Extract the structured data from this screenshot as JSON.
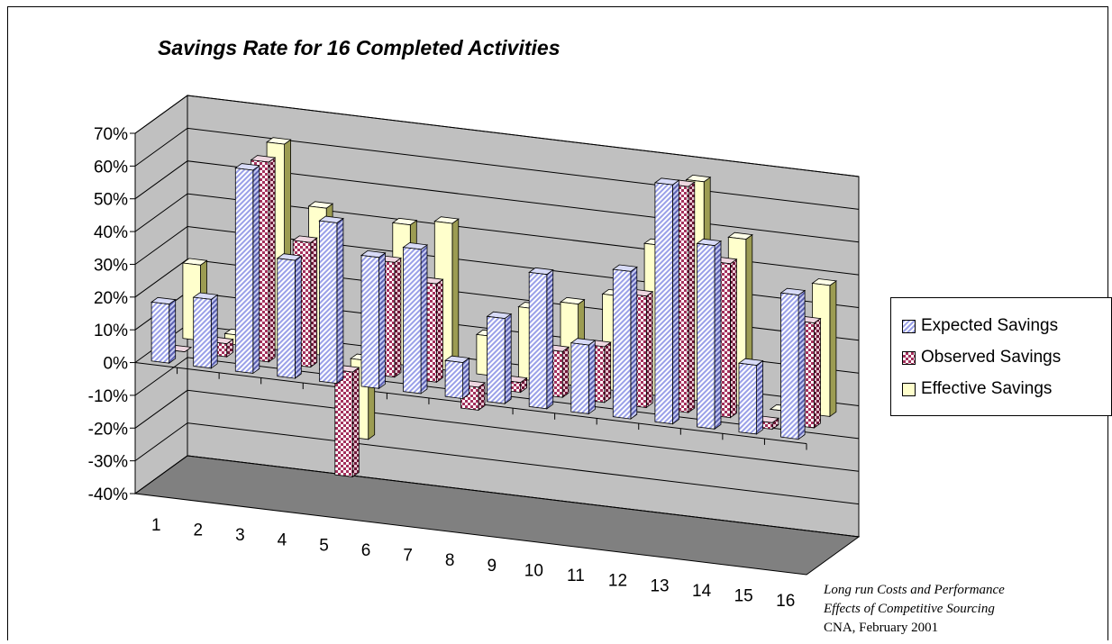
{
  "chart_data": {
    "type": "bar",
    "title": "Savings Rate for 16 Completed Activities",
    "categories": [
      "1",
      "2",
      "3",
      "4",
      "5",
      "6",
      "7",
      "8",
      "9",
      "10",
      "11",
      "12",
      "13",
      "14",
      "15",
      "16"
    ],
    "y_ticks": [
      "70%",
      "60%",
      "50%",
      "40%",
      "30%",
      "20%",
      "10%",
      "0%",
      "-10%",
      "-20%",
      "-30%",
      "-40%"
    ],
    "ylim": [
      -40,
      70
    ],
    "grid": true,
    "legend_position": "right",
    "series": [
      {
        "name": "Expected Savings",
        "values": [
          18,
          21,
          62,
          36,
          49,
          40,
          44,
          11,
          26,
          41,
          21,
          45,
          73,
          56,
          21,
          44
        ]
      },
      {
        "name": "Observed Savings",
        "values": [
          0,
          4,
          61,
          38,
          -32,
          35,
          30,
          -7,
          3,
          14,
          17,
          34,
          69,
          47,
          -2,
          32
        ]
      },
      {
        "name": "Effective Savings",
        "values": [
          23,
          3,
          63,
          45,
          -24,
          43,
          45,
          12,
          22,
          25,
          29,
          46,
          67,
          51,
          0,
          40
        ]
      }
    ],
    "colors": {
      "expected": "#9aa0e8",
      "observed": "#a4305c",
      "effective": "#ffffcc",
      "wall": "#c0c0c0",
      "floor": "#808080"
    }
  },
  "legend": {
    "items": [
      "Expected Savings",
      "Observed Savings",
      "Effective Savings"
    ]
  },
  "source": {
    "line1": "Long run Costs and Performance",
    "line2": "Effects of Competitive Sourcing",
    "line3": "CNA,  February 2001"
  }
}
